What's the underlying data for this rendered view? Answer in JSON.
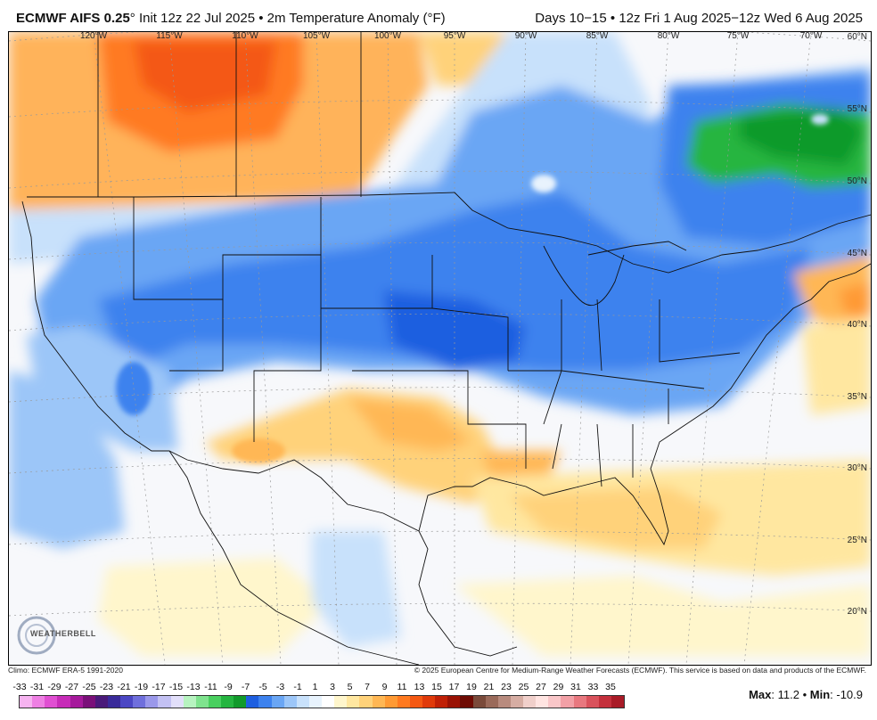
{
  "header": {
    "model": "ECMWF AIFS 0.25",
    "degree": "°",
    "init": " Init 12z 22 Jul 2025 • 2m Temperature Anomaly (°F)",
    "period": "Days 10−15 • 12z Fri 1 Aug 2025−12z Wed 6 Aug 2025"
  },
  "map": {
    "longitudes": [
      "120°W",
      "115°W",
      "110°W",
      "105°W",
      "100°W",
      "95°W",
      "90°W",
      "85°W",
      "80°W",
      "75°W",
      "70°W"
    ],
    "latitudes": [
      "60°N",
      "55°N",
      "50°N",
      "45°N",
      "40°N",
      "35°N",
      "30°N",
      "25°N",
      "20°N"
    ],
    "logo_text": "WEATHERBELL"
  },
  "footer": {
    "climo": "Climo: ECMWF ERA-5 1991-2020",
    "copyright": "© 2025 European Centre for Medium-Range Weather Forecasts (ECMWF). This service is based on data and products of the ECMWF."
  },
  "legend": {
    "labels": [
      "-33",
      "-31",
      "-29",
      "-27",
      "-25",
      "-23",
      "-21",
      "-19",
      "-17",
      "-15",
      "-13",
      "-11",
      "-9",
      "-7",
      "-5",
      "-3",
      "-1",
      "1",
      "3",
      "5",
      "7",
      "9",
      "11",
      "13",
      "15",
      "17",
      "19",
      "21",
      "23",
      "25",
      "27",
      "29",
      "31",
      "33",
      "35"
    ],
    "colors": [
      "#f6b3f0",
      "#ee7fe3",
      "#e04fd2",
      "#c72cb8",
      "#a61a9c",
      "#7a1079",
      "#4a1a7a",
      "#3a2b9a",
      "#4b47c4",
      "#6f6fdc",
      "#9a98ea",
      "#c3c1f3",
      "#e2dffa",
      "#b7f3c0",
      "#7fe38e",
      "#49cf5f",
      "#25b540",
      "#119a2b",
      "#1e5fe0",
      "#3d82ee",
      "#6aa6f4",
      "#9cc6f8",
      "#c8e1fb",
      "#e8f3fd",
      "#ffffff",
      "#fff6cc",
      "#ffe7a0",
      "#ffd27a",
      "#ffb754",
      "#ff9a34",
      "#ff7a20",
      "#f45812",
      "#e03a0a",
      "#c02006",
      "#9a1204",
      "#6e0b03",
      "#7a4a3a",
      "#9a6a5a",
      "#b88b7e",
      "#d6ada3",
      "#f0cfca",
      "#ffe4e1",
      "#f9c6c8",
      "#f2a0a6",
      "#e8787f",
      "#d9525c",
      "#c4303c",
      "#a91b27"
    ]
  },
  "stats": {
    "max_label": "Max",
    "max_value": ": 11.2 •",
    "min_label": "Min",
    "min_value": ": -10.9"
  }
}
